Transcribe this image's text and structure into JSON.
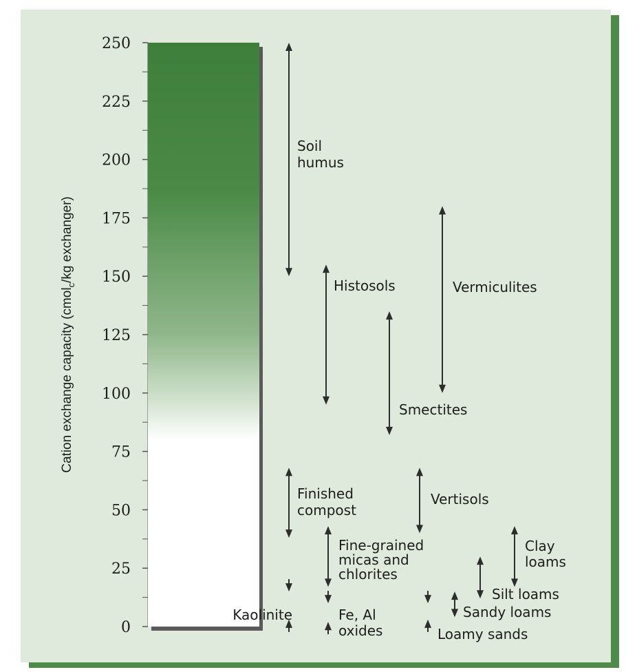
{
  "chart_data": {
    "type": "range",
    "ylabel": "Cation exchange capacity (cmol<sub>c</sub>/kg exchanger)",
    "ylabel_parts": [
      "Cation exchange capacity (cmol",
      "c",
      "/kg exchanger)"
    ],
    "ylim": [
      0,
      250
    ],
    "yticks": [
      "0",
      "25",
      "50",
      "75",
      "100",
      "125",
      "150",
      "175",
      "200",
      "225",
      "250"
    ],
    "ytick_values": [
      0,
      25,
      50,
      75,
      100,
      125,
      150,
      175,
      200,
      225,
      250
    ],
    "grid": false,
    "bar": {
      "value": 250,
      "color_top": "#3f7f3c",
      "color_bottom": "#ffffff"
    },
    "ranges": [
      {
        "label": [
          "Soil",
          "humus"
        ],
        "low": 150,
        "high": 250,
        "arrows": "both"
      },
      {
        "label": [
          "Histosols"
        ],
        "low": 95,
        "high": 155,
        "arrows": "both"
      },
      {
        "label": [
          "Vermiculites"
        ],
        "low": 100,
        "high": 180,
        "arrows": "both"
      },
      {
        "label": [
          "Smectites"
        ],
        "low": 82,
        "high": 135,
        "arrows": "both"
      },
      {
        "label": [
          "Finished",
          "compost"
        ],
        "low": 38,
        "high": 68,
        "arrows": "both"
      },
      {
        "label": [
          "Vertisols"
        ],
        "low": 40,
        "high": 68,
        "arrows": "both"
      },
      {
        "label": [
          "Fine-grained",
          "micas and",
          "chlorites"
        ],
        "low": 17,
        "high": 43,
        "arrows": "both"
      },
      {
        "label": [
          "Clay",
          "loams"
        ],
        "low": 17,
        "high": 43,
        "arrows": "both"
      },
      {
        "label": [
          "Silt loams"
        ],
        "low": 12,
        "high": 30,
        "arrows": "both"
      },
      {
        "label": [
          "Sandy loams"
        ],
        "low": 4,
        "high": 15,
        "arrows": "both"
      },
      {
        "label": [
          "Kaolinite"
        ],
        "low": 3,
        "high": 15,
        "arrows": "outward"
      },
      {
        "label": [
          "Fe, Al",
          "oxides"
        ],
        "low": 2,
        "high": 10,
        "arrows": "outward"
      },
      {
        "label": [
          "Loamy sands"
        ],
        "low": 3,
        "high": 10,
        "arrows": "outward"
      }
    ],
    "colors": {
      "axis": "#555555",
      "arrow": "#2d2d2d",
      "text": "#1d1d1d",
      "frame_bg": "#dfe9dc",
      "frame_shadow": "#4e8a4a"
    }
  }
}
